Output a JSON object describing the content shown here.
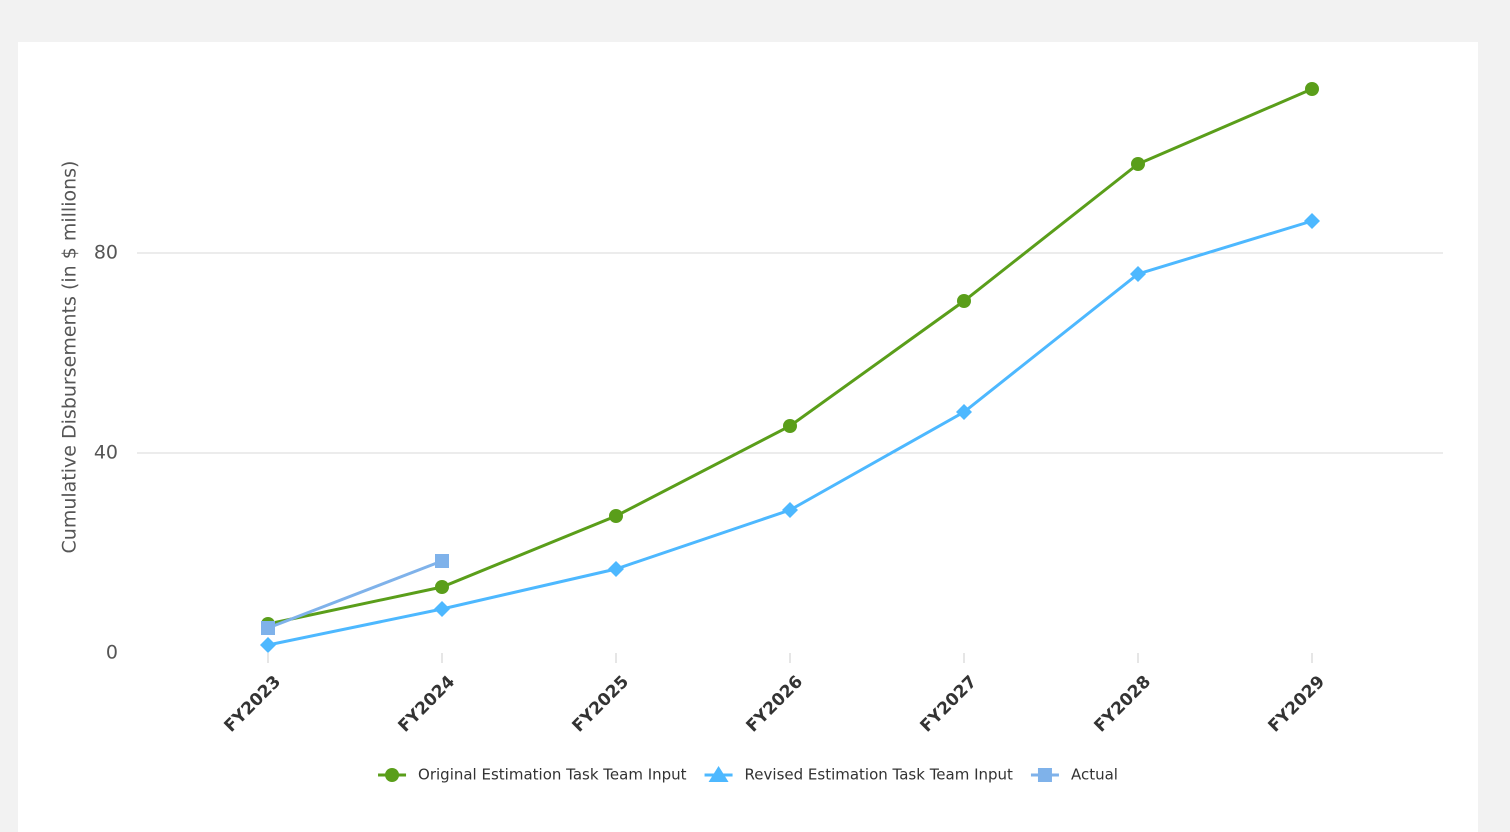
{
  "chart_data": {
    "type": "line",
    "y_label": "Cumulative Disbursements (in $ millions)",
    "categories": [
      "FY2023",
      "FY2024",
      "FY2025",
      "FY2026",
      "FY2027",
      "FY2028",
      "FY2029"
    ],
    "series": [
      {
        "name": "Original Estimation Task Team Input",
        "color": "#5a9e1a",
        "marker": "circle",
        "legend_marker": "circle",
        "values": [
          5.8,
          13.2,
          27.4,
          45.4,
          70.4,
          97.8,
          112.8
        ]
      },
      {
        "name": "Revised Estimation Task Team Input",
        "color": "#4db8ff",
        "marker": "diamond",
        "legend_marker": "triangle",
        "values": [
          1.6,
          8.8,
          16.8,
          28.6,
          48.2,
          75.8,
          86.4
        ]
      },
      {
        "name": "Actual",
        "color": "#7fb2ea",
        "marker": "square",
        "legend_marker": "square",
        "values": [
          5,
          18.4,
          null,
          null,
          null,
          null,
          null
        ]
      }
    ],
    "ylim": [
      0,
      120
    ],
    "yticks": [
      0,
      40,
      80
    ],
    "grid": true,
    "legend": "bottom"
  }
}
